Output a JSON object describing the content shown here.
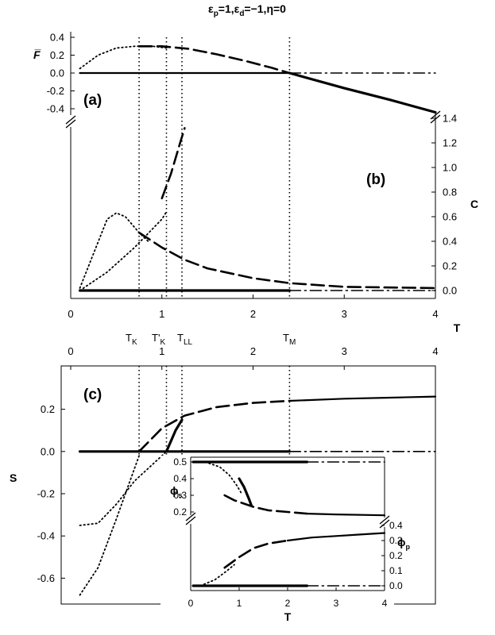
{
  "figure": {
    "title_parts": [
      "ε",
      "p",
      "=1,",
      "ε",
      "d",
      "=−1,η=0"
    ],
    "panel_labels": {
      "a": "(a)",
      "b": "(b)",
      "c": "(c)"
    },
    "temperature_markers": [
      {
        "label": "T",
        "sub": "K",
        "prime": "",
        "T": 0.75
      },
      {
        "label": "T",
        "sub": "K",
        "prime": "'",
        "T": 1.05
      },
      {
        "label": "T",
        "sub": "LL",
        "prime": "",
        "T": 1.22
      },
      {
        "label": "T",
        "sub": "M",
        "prime": "",
        "T": 2.4
      }
    ]
  },
  "chart_data": [
    {
      "panel": "a",
      "type": "line",
      "ylabel": "F̅",
      "xlim": [
        0,
        4
      ],
      "ylim": [
        -0.4,
        0.4
      ],
      "yticks": [
        "0.4",
        "0.2",
        "0.0",
        "-0.2",
        "-0.4"
      ],
      "ytick_values": [
        0.4,
        0.2,
        0.0,
        -0.2,
        -0.4
      ],
      "series": [
        {
          "style": "solid",
          "x": [
            0.1,
            2.4
          ],
          "y": [
            0.0,
            0.0
          ]
        },
        {
          "style": "dashdot",
          "x": [
            2.4,
            4.0
          ],
          "y": [
            0.0,
            0.0
          ]
        },
        {
          "style": "dotted",
          "x": [
            0.1,
            0.3,
            0.5,
            0.7,
            0.9,
            1.05
          ],
          "y": [
            0.05,
            0.2,
            0.28,
            0.3,
            0.3,
            0.28
          ]
        },
        {
          "style": "dashed",
          "x": [
            0.75,
            1.0,
            1.3,
            1.6,
            1.9,
            2.2,
            2.4
          ],
          "y": [
            0.3,
            0.3,
            0.27,
            0.21,
            0.14,
            0.06,
            0.0
          ]
        },
        {
          "style": "solid-thick",
          "x": [
            2.4,
            3.0,
            3.5,
            4.0
          ],
          "y": [
            0.0,
            -0.17,
            -0.3,
            -0.44
          ]
        }
      ]
    },
    {
      "panel": "b",
      "type": "line",
      "ylabel": "C",
      "xlabel": "T",
      "xlim": [
        0,
        4
      ],
      "ylim": [
        0,
        1.4
      ],
      "xticks": [
        "0",
        "1",
        "2",
        "3",
        "4"
      ],
      "xtick_values": [
        0,
        1,
        2,
        3,
        4
      ],
      "yticks": [
        "1.4",
        "1.2",
        "1.0",
        "0.8",
        "0.6",
        "0.4",
        "0.2",
        "0.0"
      ],
      "ytick_values": [
        1.4,
        1.2,
        1.0,
        0.8,
        0.6,
        0.4,
        0.2,
        0.0
      ],
      "series": [
        {
          "style": "solid-thick",
          "x": [
            0.1,
            2.4
          ],
          "y": [
            0.0,
            0.0
          ]
        },
        {
          "style": "dashdot",
          "x": [
            2.4,
            4.0
          ],
          "y": [
            0.0,
            0.0
          ]
        },
        {
          "style": "dotted",
          "x": [
            0.1,
            0.25,
            0.4,
            0.5,
            0.6,
            0.75,
            0.85
          ],
          "y": [
            0.02,
            0.3,
            0.58,
            0.63,
            0.6,
            0.47,
            0.4
          ]
        },
        {
          "style": "dotted",
          "x": [
            0.1,
            0.4,
            0.7,
            1.0,
            1.05
          ],
          "y": [
            0.0,
            0.15,
            0.35,
            0.58,
            0.64
          ]
        },
        {
          "style": "dashed",
          "x": [
            1.0,
            1.1,
            1.2,
            1.25
          ],
          "y": [
            0.75,
            0.95,
            1.2,
            1.32
          ]
        },
        {
          "style": "dashed",
          "x": [
            0.75,
            1.0,
            1.25,
            1.5,
            2.0,
            2.4,
            3.0,
            4.0
          ],
          "y": [
            0.47,
            0.35,
            0.25,
            0.18,
            0.1,
            0.06,
            0.03,
            0.02
          ]
        }
      ]
    },
    {
      "panel": "c",
      "type": "line",
      "ylabel": "S",
      "xlim": [
        0,
        4
      ],
      "ylim": [
        -0.7,
        0.3
      ],
      "xticks": [
        "0",
        "1",
        "2",
        "3",
        "4"
      ],
      "xtick_values": [
        0,
        1,
        2,
        3,
        4
      ],
      "yticks": [
        "0.2",
        "0.0",
        "-0.2",
        "-0.4",
        "-0.6"
      ],
      "ytick_values": [
        0.2,
        0.0,
        -0.2,
        -0.4,
        -0.6
      ],
      "series": [
        {
          "style": "solid-thick",
          "x": [
            0.1,
            2.4
          ],
          "y": [
            0.0,
            0.0
          ]
        },
        {
          "style": "dashdot",
          "x": [
            2.4,
            4.0
          ],
          "y": [
            0.0,
            0.0
          ]
        },
        {
          "style": "dotted",
          "x": [
            0.1,
            0.3,
            0.5,
            0.7,
            0.75
          ],
          "y": [
            -0.68,
            -0.55,
            -0.32,
            -0.08,
            -0.02
          ]
        },
        {
          "style": "dotted",
          "x": [
            0.1,
            0.3,
            0.5,
            0.7,
            0.9,
            1.05
          ],
          "y": [
            -0.35,
            -0.34,
            -0.25,
            -0.14,
            -0.06,
            0.0
          ]
        },
        {
          "style": "dashed",
          "x": [
            0.75,
            1.0,
            1.25,
            1.6,
            2.0,
            2.4
          ],
          "y": [
            0.0,
            0.11,
            0.17,
            0.21,
            0.23,
            0.24
          ]
        },
        {
          "style": "solid-thick",
          "x": [
            1.05,
            1.15,
            1.22
          ],
          "y": [
            0.0,
            0.1,
            0.15
          ]
        },
        {
          "style": "solid",
          "x": [
            2.4,
            3.0,
            3.5,
            4.0
          ],
          "y": [
            0.24,
            0.25,
            0.255,
            0.26
          ]
        }
      ]
    },
    {
      "panel": "inset-upper",
      "type": "line",
      "ylabel": "ϕs",
      "ylabel_main": "ϕ",
      "ylabel_sub": "s",
      "xlim": [
        0,
        4
      ],
      "ylim": [
        0.2,
        0.5
      ],
      "yticks": [
        "0.5",
        "0.4",
        "0.3",
        "0.2"
      ],
      "ytick_values": [
        0.5,
        0.4,
        0.3,
        0.2
      ],
      "series": [
        {
          "style": "solid-thick",
          "x": [
            0.05,
            2.4
          ],
          "y": [
            0.5,
            0.5
          ]
        },
        {
          "style": "dashdot",
          "x": [
            2.4,
            4.0
          ],
          "y": [
            0.5,
            0.5
          ]
        },
        {
          "style": "dotted",
          "x": [
            0.3,
            0.6,
            0.8,
            0.95,
            1.05
          ],
          "y": [
            0.5,
            0.47,
            0.42,
            0.36,
            0.31
          ]
        },
        {
          "style": "dashed",
          "x": [
            0.7,
            0.9,
            1.1,
            1.3,
            1.6,
            2.0,
            2.4
          ],
          "y": [
            0.3,
            0.27,
            0.25,
            0.23,
            0.21,
            0.2,
            0.19
          ]
        },
        {
          "style": "solid-thick",
          "x": [
            1.0,
            1.1,
            1.2,
            1.25
          ],
          "y": [
            0.4,
            0.35,
            0.28,
            0.24
          ]
        },
        {
          "style": "solid",
          "x": [
            2.4,
            3.0,
            4.0
          ],
          "y": [
            0.19,
            0.185,
            0.18
          ]
        }
      ]
    },
    {
      "panel": "inset-lower",
      "type": "line",
      "ylabel": "ϕp",
      "ylabel_main": "ϕ",
      "ylabel_sub": "p",
      "xlabel": "T",
      "xlim": [
        0,
        4
      ],
      "ylim": [
        0,
        0.4
      ],
      "xticks": [
        "0",
        "1",
        "2",
        "3",
        "4"
      ],
      "xtick_values": [
        0,
        1,
        2,
        3,
        4
      ],
      "yticks": [
        "0.4",
        "0.3",
        "0.2",
        "0.1",
        "0.0"
      ],
      "ytick_values": [
        0.4,
        0.3,
        0.2,
        0.1,
        0.0
      ],
      "series": [
        {
          "style": "solid-thick",
          "x": [
            0.05,
            2.4
          ],
          "y": [
            0.0,
            0.0
          ]
        },
        {
          "style": "dashdot",
          "x": [
            2.4,
            4.0
          ],
          "y": [
            0.0,
            0.0
          ]
        },
        {
          "style": "dotted",
          "x": [
            0.2,
            0.5,
            0.75,
            0.9
          ],
          "y": [
            0.0,
            0.04,
            0.1,
            0.14
          ]
        },
        {
          "style": "dashed",
          "x": [
            0.7,
            1.0,
            1.3,
            1.6,
            2.0
          ],
          "y": [
            0.12,
            0.19,
            0.25,
            0.28,
            0.3
          ]
        },
        {
          "style": "solid",
          "x": [
            2.0,
            2.5,
            3.0,
            3.5,
            4.0
          ],
          "y": [
            0.3,
            0.32,
            0.33,
            0.34,
            0.35
          ]
        }
      ]
    }
  ]
}
